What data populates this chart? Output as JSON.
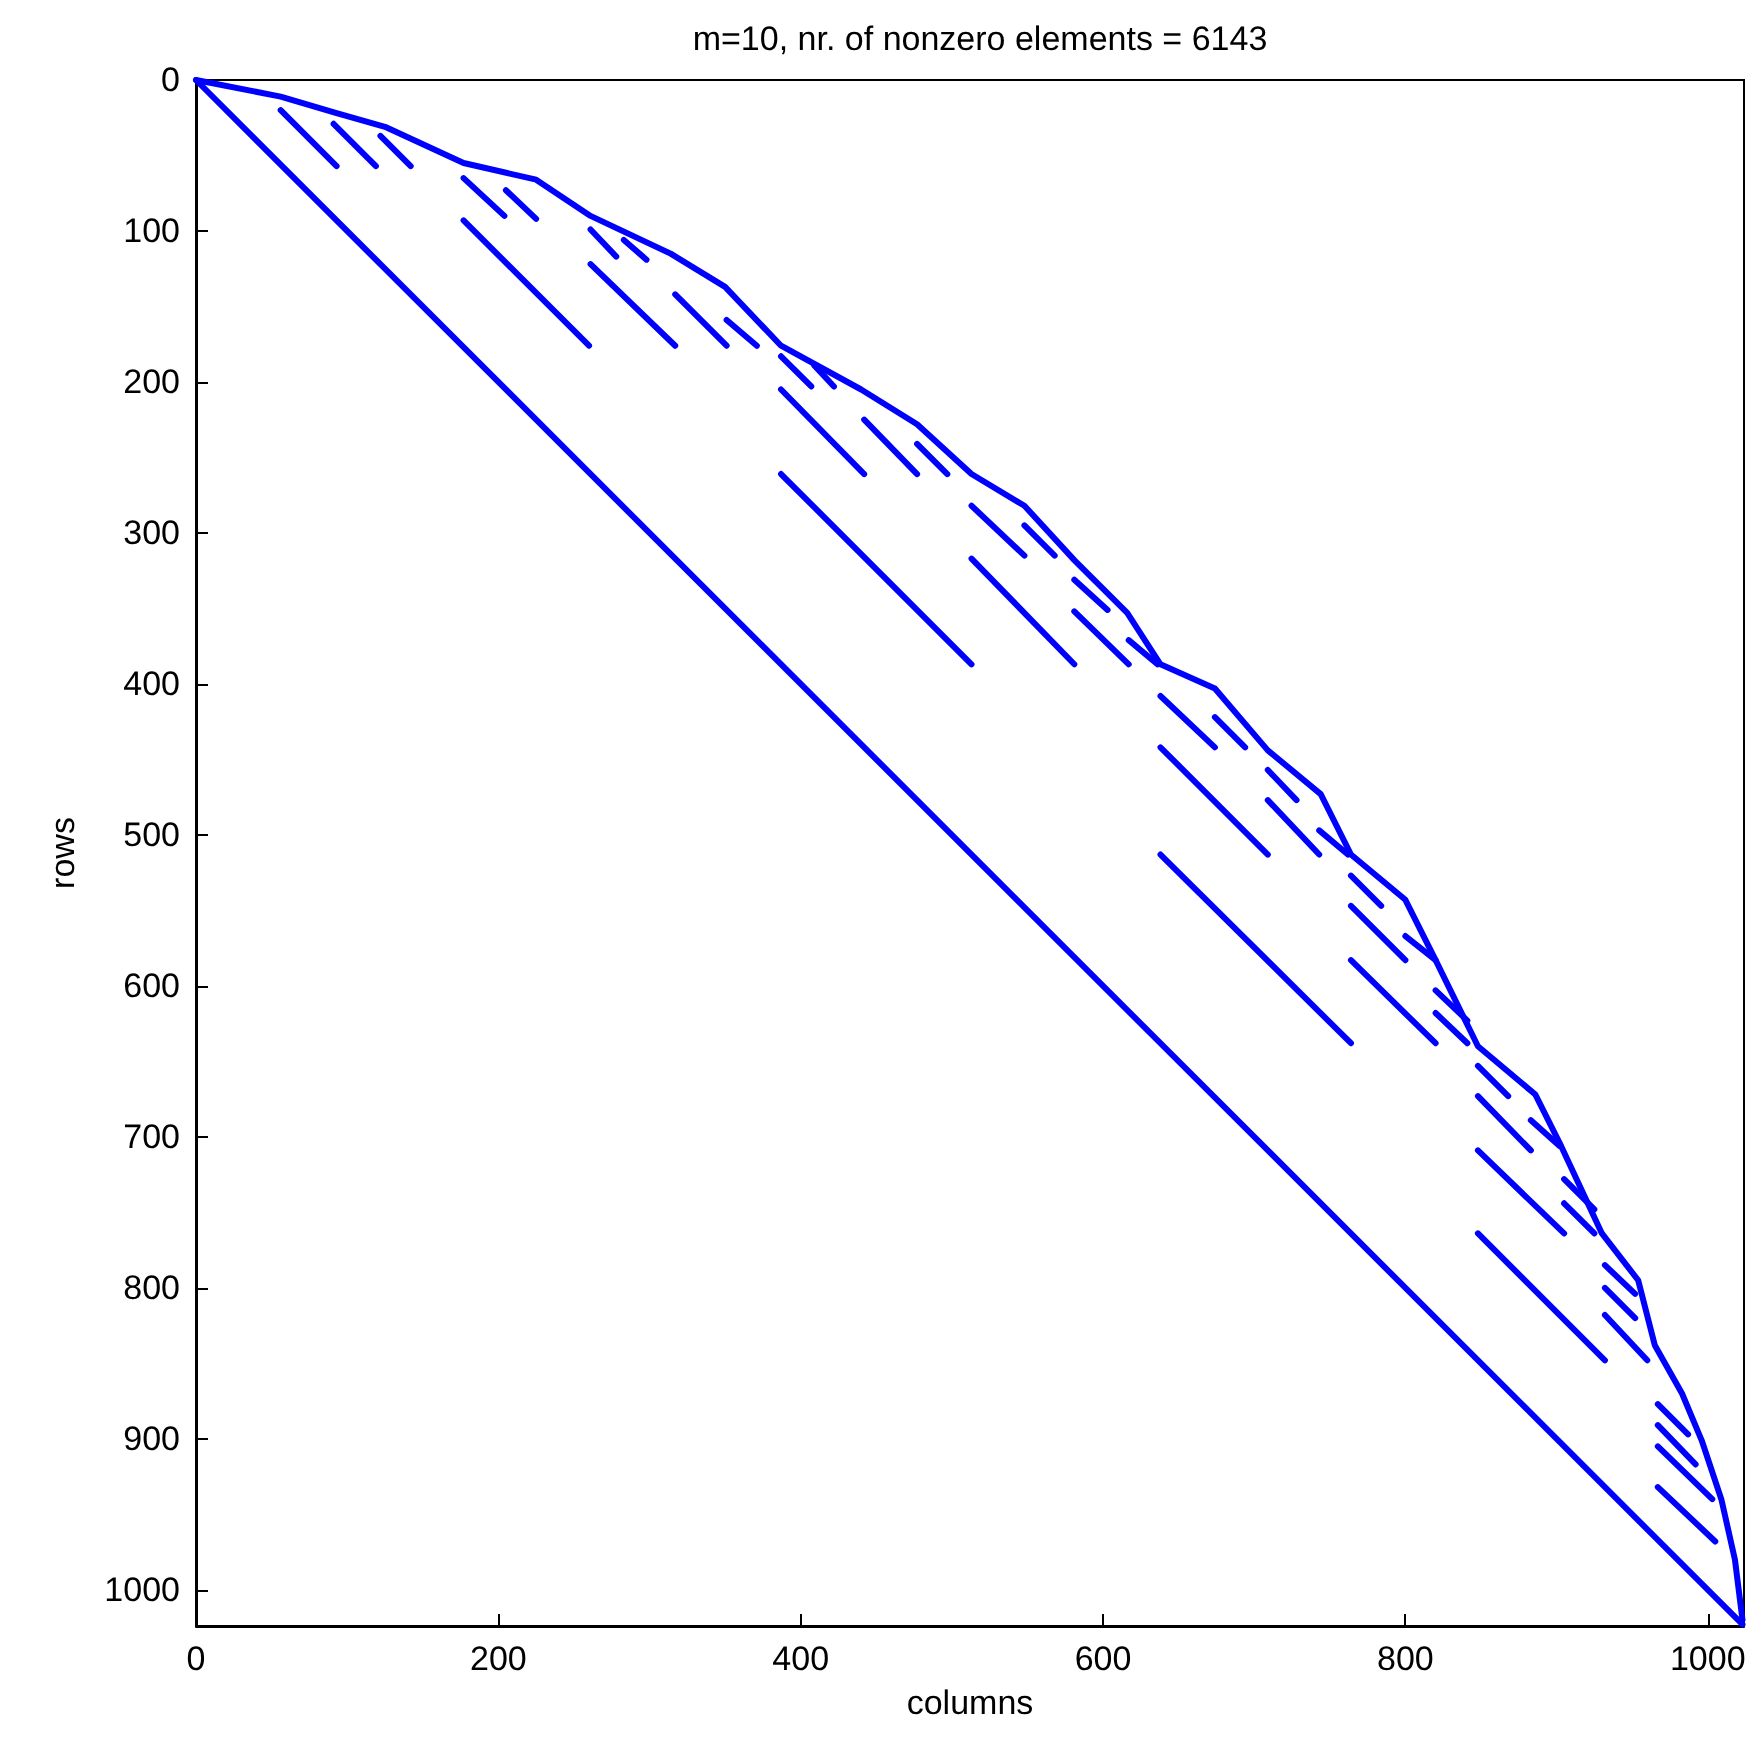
{
  "chart_data": {
    "type": "line",
    "title": "m=10, nr. of nonzero elements = 6143",
    "xlabel": "columns",
    "ylabel": "rows",
    "xlim": [
      0,
      1024
    ],
    "xticks": [
      0,
      200,
      400,
      600,
      800,
      1000
    ],
    "ylim": [
      1024,
      0
    ],
    "yticks": [
      0,
      100,
      200,
      300,
      400,
      500,
      600,
      700,
      800,
      900,
      1000
    ],
    "marker": "none",
    "line_style": "solid",
    "series": [
      {
        "color": "#0000ff",
        "x": [
          0,
          1023
        ],
        "values": [
          0,
          1023
        ]
      },
      {
        "color": "#0000ff",
        "x": [
          0,
          56,
          93,
          125,
          177,
          225,
          261,
          314,
          350,
          387,
          440,
          477,
          513,
          548,
          581,
          616,
          638,
          674,
          709,
          744,
          764,
          800,
          820,
          848,
          886,
          903,
          930,
          954,
          965,
          983,
          996,
          1009,
          1018,
          1023
        ],
        "values": [
          0,
          11,
          22,
          31,
          55,
          66,
          90,
          115,
          137,
          176,
          205,
          228,
          261,
          282,
          318,
          353,
          387,
          403,
          444,
          473,
          513,
          543,
          583,
          640,
          672,
          706,
          764,
          795,
          838,
          870,
          901,
          940,
          980,
          1020
        ]
      },
      {
        "color": "#0000ff",
        "x": [
          56,
          93
        ],
        "values": [
          20,
          57
        ]
      },
      {
        "color": "#0000ff",
        "x": [
          91,
          119
        ],
        "values": [
          29,
          57
        ]
      },
      {
        "color": "#0000ff",
        "x": [
          122,
          142
        ],
        "values": [
          37,
          57
        ]
      },
      {
        "color": "#0000ff",
        "x": [
          177,
          204
        ],
        "values": [
          65,
          90
        ]
      },
      {
        "color": "#0000ff",
        "x": [
          205,
          225
        ],
        "values": [
          73,
          92
        ]
      },
      {
        "color": "#0000ff",
        "x": [
          177,
          260
        ],
        "values": [
          93,
          176
        ]
      },
      {
        "color": "#0000ff",
        "x": [
          261,
          278
        ],
        "values": [
          99,
          117
        ]
      },
      {
        "color": "#0000ff",
        "x": [
          261,
          317
        ],
        "values": [
          122,
          176
        ]
      },
      {
        "color": "#0000ff",
        "x": [
          283,
          298
        ],
        "values": [
          106,
          119
        ]
      },
      {
        "color": "#0000ff",
        "x": [
          317,
          351
        ],
        "values": [
          142,
          176
        ]
      },
      {
        "color": "#0000ff",
        "x": [
          351,
          371
        ],
        "values": [
          159,
          176
        ]
      },
      {
        "color": "#0000ff",
        "x": [
          387,
          407
        ],
        "values": [
          183,
          203
        ]
      },
      {
        "color": "#0000ff",
        "x": [
          409,
          422
        ],
        "values": [
          189,
          203
        ]
      },
      {
        "color": "#0000ff",
        "x": [
          387,
          442
        ],
        "values": [
          205,
          261
        ]
      },
      {
        "color": "#0000ff",
        "x": [
          442,
          477
        ],
        "values": [
          225,
          261
        ]
      },
      {
        "color": "#0000ff",
        "x": [
          477,
          497
        ],
        "values": [
          241,
          261
        ]
      },
      {
        "color": "#0000ff",
        "x": [
          387,
          513
        ],
        "values": [
          261,
          387
        ]
      },
      {
        "color": "#0000ff",
        "x": [
          513,
          548
        ],
        "values": [
          282,
          315
        ]
      },
      {
        "color": "#0000ff",
        "x": [
          548,
          568
        ],
        "values": [
          295,
          315
        ]
      },
      {
        "color": "#0000ff",
        "x": [
          513,
          581
        ],
        "values": [
          317,
          387
        ]
      },
      {
        "color": "#0000ff",
        "x": [
          581,
          603
        ],
        "values": [
          331,
          351
        ]
      },
      {
        "color": "#0000ff",
        "x": [
          581,
          617
        ],
        "values": [
          352,
          387
        ]
      },
      {
        "color": "#0000ff",
        "x": [
          617,
          636
        ],
        "values": [
          371,
          387
        ]
      },
      {
        "color": "#0000ff",
        "x": [
          638,
          674
        ],
        "values": [
          408,
          442
        ]
      },
      {
        "color": "#0000ff",
        "x": [
          674,
          694
        ],
        "values": [
          422,
          442
        ]
      },
      {
        "color": "#0000ff",
        "x": [
          638,
          709
        ],
        "values": [
          442,
          513
        ]
      },
      {
        "color": "#0000ff",
        "x": [
          709,
          728
        ],
        "values": [
          457,
          477
        ]
      },
      {
        "color": "#0000ff",
        "x": [
          709,
          743
        ],
        "values": [
          477,
          513
        ]
      },
      {
        "color": "#0000ff",
        "x": [
          743,
          762
        ],
        "values": [
          497,
          513
        ]
      },
      {
        "color": "#0000ff",
        "x": [
          638,
          764
        ],
        "values": [
          513,
          638
        ]
      },
      {
        "color": "#0000ff",
        "x": [
          764,
          784
        ],
        "values": [
          527,
          547
        ]
      },
      {
        "color": "#0000ff",
        "x": [
          764,
          800
        ],
        "values": [
          547,
          583
        ]
      },
      {
        "color": "#0000ff",
        "x": [
          800,
          820
        ],
        "values": [
          567,
          583
        ]
      },
      {
        "color": "#0000ff",
        "x": [
          764,
          820
        ],
        "values": [
          583,
          638
        ]
      },
      {
        "color": "#0000ff",
        "x": [
          820,
          841
        ],
        "values": [
          603,
          623
        ]
      },
      {
        "color": "#0000ff",
        "x": [
          820,
          841
        ],
        "values": [
          618,
          638
        ]
      },
      {
        "color": "#0000ff",
        "x": [
          848,
          868
        ],
        "values": [
          653,
          673
        ]
      },
      {
        "color": "#0000ff",
        "x": [
          848,
          883
        ],
        "values": [
          673,
          709
        ]
      },
      {
        "color": "#0000ff",
        "x": [
          883,
          902
        ],
        "values": [
          689,
          706
        ]
      },
      {
        "color": "#0000ff",
        "x": [
          848,
          905
        ],
        "values": [
          709,
          764
        ]
      },
      {
        "color": "#0000ff",
        "x": [
          905,
          925
        ],
        "values": [
          728,
          748
        ]
      },
      {
        "color": "#0000ff",
        "x": [
          905,
          925
        ],
        "values": [
          744,
          764
        ]
      },
      {
        "color": "#0000ff",
        "x": [
          848,
          932
        ],
        "values": [
          764,
          848
        ]
      },
      {
        "color": "#0000ff",
        "x": [
          932,
          952
        ],
        "values": [
          785,
          804
        ]
      },
      {
        "color": "#0000ff",
        "x": [
          932,
          952
        ],
        "values": [
          800,
          820
        ]
      },
      {
        "color": "#0000ff",
        "x": [
          932,
          960
        ],
        "values": [
          818,
          848
        ]
      },
      {
        "color": "#0000ff",
        "x": [
          967,
          987
        ],
        "values": [
          877,
          897
        ]
      },
      {
        "color": "#0000ff",
        "x": [
          967,
          992
        ],
        "values": [
          891,
          917
        ]
      },
      {
        "color": "#0000ff",
        "x": [
          967,
          1003
        ],
        "values": [
          905,
          940
        ]
      },
      {
        "color": "#0000ff",
        "x": [
          967,
          1005
        ],
        "values": [
          932,
          968
        ]
      }
    ]
  }
}
